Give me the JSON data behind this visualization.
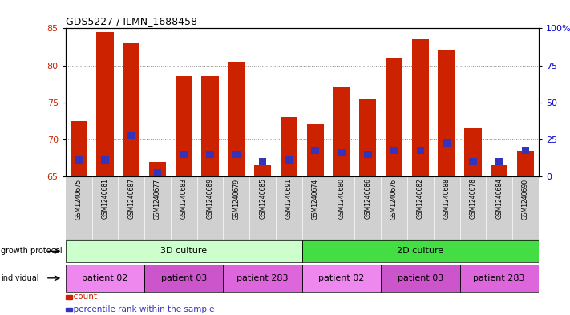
{
  "title": "GDS5227 / ILMN_1688458",
  "samples": [
    "GSM1240675",
    "GSM1240681",
    "GSM1240687",
    "GSM1240677",
    "GSM1240683",
    "GSM1240689",
    "GSM1240679",
    "GSM1240685",
    "GSM1240691",
    "GSM1240674",
    "GSM1240680",
    "GSM1240686",
    "GSM1240676",
    "GSM1240682",
    "GSM1240688",
    "GSM1240678",
    "GSM1240684",
    "GSM1240690"
  ],
  "count_values": [
    72.5,
    84.5,
    83.0,
    67.0,
    78.5,
    78.5,
    80.5,
    66.5,
    73.0,
    72.0,
    77.0,
    75.5,
    81.0,
    83.5,
    82.0,
    71.5,
    66.5,
    68.5
  ],
  "percentile_values": [
    67.2,
    67.2,
    70.5,
    65.5,
    68.0,
    68.0,
    68.0,
    67.0,
    67.2,
    68.5,
    68.2,
    68.0,
    68.5,
    68.5,
    69.5,
    67.0,
    67.0,
    68.5
  ],
  "ymin": 65,
  "ymax": 85,
  "yticks_left": [
    65,
    70,
    75,
    80,
    85
  ],
  "yticks_right_labels": [
    "0",
    "25",
    "50",
    "75",
    "100%"
  ],
  "bar_color": "#cc2200",
  "blue_color": "#3333bb",
  "growth_protocol_groups": [
    {
      "label": "3D culture",
      "start": 0,
      "end": 9,
      "color": "#ccffcc"
    },
    {
      "label": "2D culture",
      "start": 9,
      "end": 18,
      "color": "#44dd44"
    }
  ],
  "individual_groups": [
    {
      "label": "patient 02",
      "start": 0,
      "end": 3,
      "color": "#ee88ee"
    },
    {
      "label": "patient 03",
      "start": 3,
      "end": 6,
      "color": "#cc55cc"
    },
    {
      "label": "patient 283",
      "start": 6,
      "end": 9,
      "color": "#dd66dd"
    },
    {
      "label": "patient 02",
      "start": 9,
      "end": 12,
      "color": "#ee88ee"
    },
    {
      "label": "patient 03",
      "start": 12,
      "end": 15,
      "color": "#cc55cc"
    },
    {
      "label": "patient 283",
      "start": 15,
      "end": 18,
      "color": "#dd66dd"
    }
  ],
  "left_label_color": "#cc2200",
  "right_label_color": "#0000cc",
  "legend_count_color": "#cc2200",
  "legend_pct_color": "#3333bb",
  "row_label_color": "#000000",
  "grid_color": "#888888",
  "bg_color": "#ffffff",
  "xtick_bg": "#d0d0d0"
}
